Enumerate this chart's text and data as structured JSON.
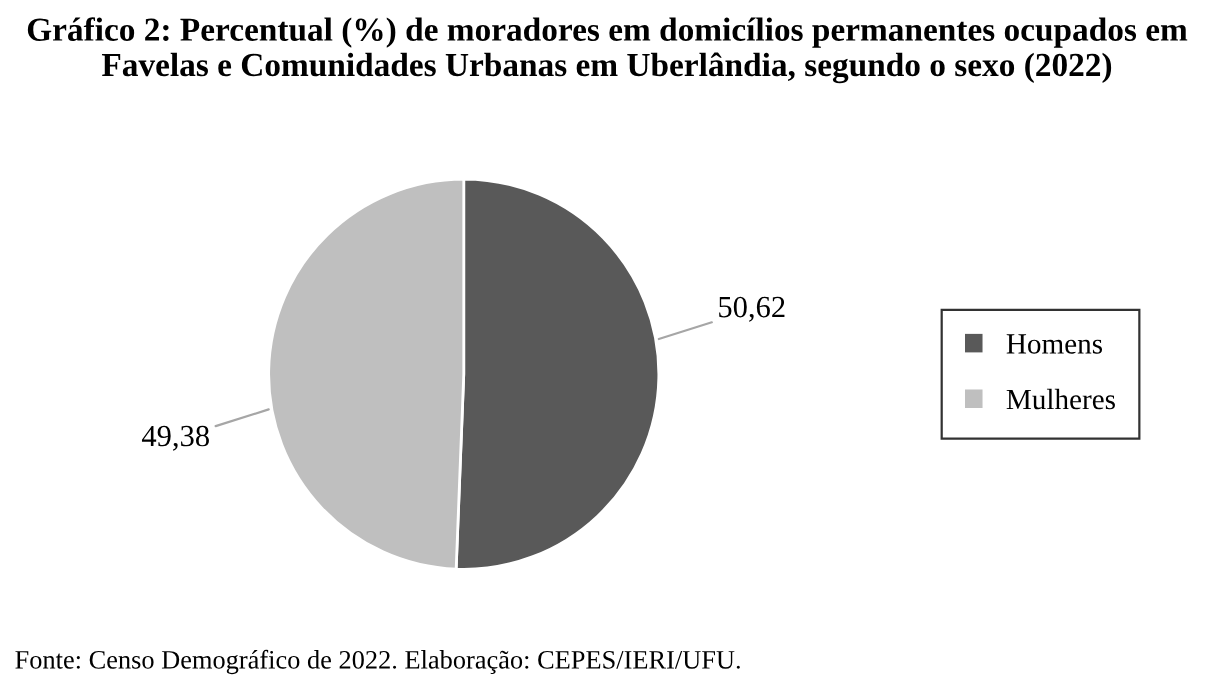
{
  "chart_data": {
    "type": "pie",
    "title": "Gráfico 2: Percentual (%) de moradores em domicílios permanentes ocupados em\nFavelas e Comunidades Urbanas em Uberlândia, segundo o sexo (2022)",
    "categories": [
      "Homens",
      "Mulheres"
    ],
    "values": [
      50.62,
      49.38
    ],
    "colors": [
      "#595959",
      "#bfbfbf"
    ],
    "value_labels": [
      "50,62",
      "49,38"
    ],
    "legend": "right",
    "annotations": [
      "Fonte: Censo Demográfico de 2022. Elaboração: CEPES/IERI/UFU."
    ]
  }
}
